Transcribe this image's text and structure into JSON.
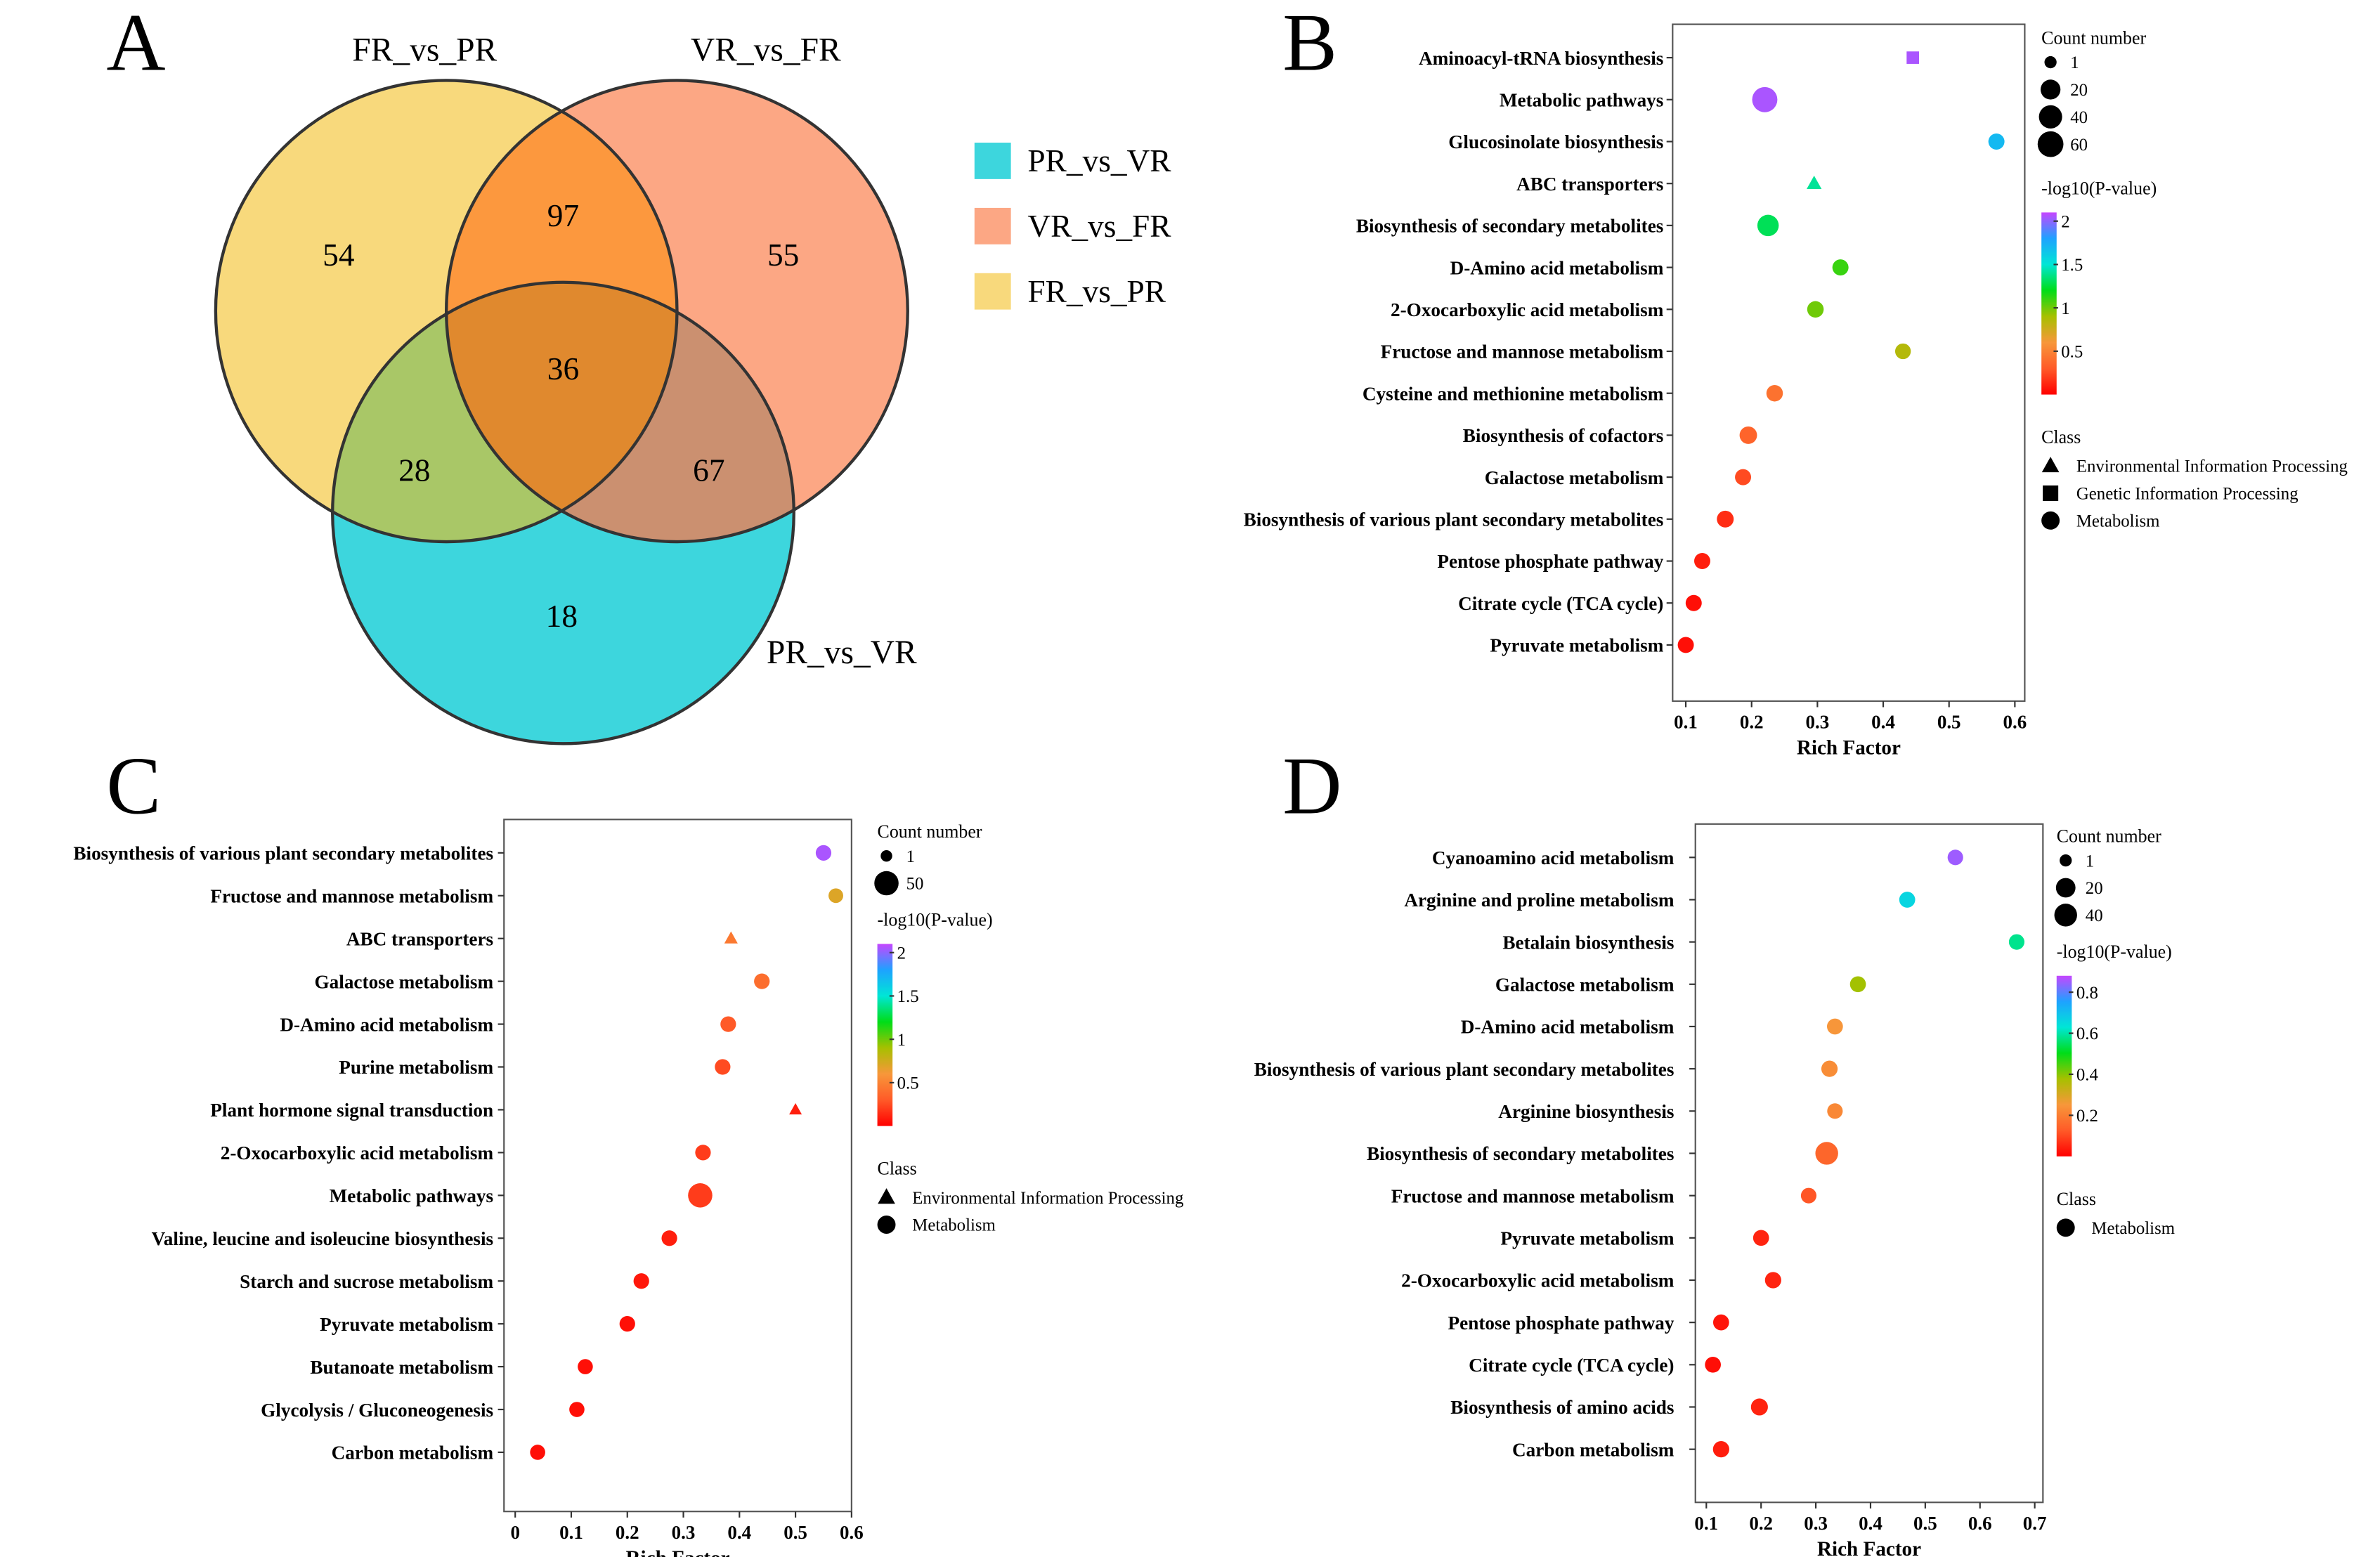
{
  "panels": {
    "A": "A",
    "B": "B",
    "C": "C",
    "D": "D"
  },
  "colormap": [
    "#ff0000",
    "#ff5a28",
    "#f7973a",
    "#a7c000",
    "#00dd18",
    "#00e6d6",
    "#1ea2ff",
    "#c646ff"
  ],
  "chart_data": [
    {
      "type": "venn",
      "panel": "A",
      "sets": [
        {
          "name": "FR_vs_PR",
          "color": "#f8d97c"
        },
        {
          "name": "VR_vs_FR",
          "color": "#fca784"
        },
        {
          "name": "PR_vs_VR",
          "color": "#3dd6dd"
        }
      ],
      "legend": [
        "PR_vs_VR",
        "VR_vs_FR",
        "FR_vs_PR"
      ],
      "legend_colors": [
        "#3dd6dd",
        "#fca784",
        "#f8d97c"
      ],
      "regions": {
        "FR_only": "54",
        "VR_only": "55",
        "PR_only": "18",
        "FR_VR": "97",
        "FR_PR": "28",
        "VR_PR": "67",
        "all": "36"
      }
    },
    {
      "type": "scatter",
      "panel": "B",
      "xlabel": "Rich Factor",
      "xlim": [
        0.08,
        0.615
      ],
      "xticks": [
        "0.1",
        "0.2",
        "0.3",
        "0.4",
        "0.5",
        "0.6"
      ],
      "color_title": "-log10(P-value)",
      "color_range": [
        0,
        2.1
      ],
      "color_ticks": [
        "0.5",
        "1",
        "1.5",
        "2"
      ],
      "size_title": "Count number",
      "size_legend": [
        "1",
        "20",
        "40",
        "60"
      ],
      "size_range": [
        1,
        60
      ],
      "class_title": "Class",
      "classes": [
        "Environmental Information Processing",
        "Genetic Information Processing",
        "Metabolism"
      ],
      "points": [
        {
          "term": "Aminoacyl-tRNA biosynthesis",
          "x": 0.445,
          "p": 2.05,
          "count": 3,
          "class": "Genetic Information Processing"
        },
        {
          "term": "Metabolic pathways",
          "x": 0.22,
          "p": 2.05,
          "count": 55,
          "class": "Metabolism"
        },
        {
          "term": "Glucosinolate biosynthesis",
          "x": 0.572,
          "p": 1.7,
          "count": 6,
          "class": "Metabolism"
        },
        {
          "term": "ABC transporters",
          "x": 0.295,
          "p": 1.4,
          "count": 5,
          "class": "Environmental Information Processing"
        },
        {
          "term": "Biosynthesis of secondary metabolites",
          "x": 0.225,
          "p": 1.3,
          "count": 28,
          "class": "Metabolism"
        },
        {
          "term": "D-Amino acid metabolism",
          "x": 0.335,
          "p": 1.1,
          "count": 6,
          "class": "Metabolism"
        },
        {
          "term": "2-Oxocarboxylic acid metabolism",
          "x": 0.297,
          "p": 1.0,
          "count": 7,
          "class": "Metabolism"
        },
        {
          "term": "Fructose and mannose metabolism",
          "x": 0.43,
          "p": 0.85,
          "count": 5,
          "class": "Metabolism"
        },
        {
          "term": "Cysteine and methionine metabolism",
          "x": 0.235,
          "p": 0.42,
          "count": 7,
          "class": "Metabolism"
        },
        {
          "term": "Biosynthesis of cofactors",
          "x": 0.195,
          "p": 0.35,
          "count": 10,
          "class": "Metabolism"
        },
        {
          "term": "Galactose metabolism",
          "x": 0.187,
          "p": 0.25,
          "count": 6,
          "class": "Metabolism"
        },
        {
          "term": "Biosynthesis of various plant secondary metabolites",
          "x": 0.16,
          "p": 0.15,
          "count": 8,
          "class": "Metabolism"
        },
        {
          "term": "Pentose phosphate pathway",
          "x": 0.125,
          "p": 0.1,
          "count": 6,
          "class": "Metabolism"
        },
        {
          "term": "Citrate cycle (TCA cycle)",
          "x": 0.112,
          "p": 0.05,
          "count": 6,
          "class": "Metabolism"
        },
        {
          "term": "Pyruvate metabolism",
          "x": 0.1,
          "p": 0.05,
          "count": 6,
          "class": "Metabolism"
        }
      ]
    },
    {
      "type": "scatter",
      "panel": "C",
      "xlabel": "Rich Factor",
      "xlim": [
        -0.02,
        0.6
      ],
      "xticks": [
        "0",
        "0.1",
        "0.2",
        "0.3",
        "0.4",
        "0.5",
        "0.6"
      ],
      "color_title": "-log10(P-value)",
      "color_range": [
        0,
        2.1
      ],
      "color_ticks": [
        "0.5",
        "1",
        "1.5",
        "2"
      ],
      "size_title": "Count number",
      "size_legend": [
        "1",
        "50"
      ],
      "size_range": [
        1,
        50
      ],
      "class_title": "Class",
      "classes": [
        "Environmental Information Processing",
        "Metabolism"
      ],
      "points": [
        {
          "term": "Biosynthesis of various plant secondary metabolites",
          "x": 0.55,
          "p": 2.05,
          "count": 6,
          "class": "Metabolism"
        },
        {
          "term": "Fructose and mannose metabolism",
          "x": 0.572,
          "p": 0.7,
          "count": 4,
          "class": "Metabolism"
        },
        {
          "term": "ABC transporters",
          "x": 0.385,
          "p": 0.45,
          "count": 3,
          "class": "Environmental Information Processing"
        },
        {
          "term": "Galactose metabolism",
          "x": 0.44,
          "p": 0.4,
          "count": 6,
          "class": "Metabolism"
        },
        {
          "term": "D-Amino acid metabolism",
          "x": 0.38,
          "p": 0.3,
          "count": 6,
          "class": "Metabolism"
        },
        {
          "term": "Purine metabolism",
          "x": 0.37,
          "p": 0.25,
          "count": 6,
          "class": "Metabolism"
        },
        {
          "term": "Plant hormone signal transduction",
          "x": 0.5,
          "p": 0.1,
          "count": 2,
          "class": "Environmental Information Processing"
        },
        {
          "term": "2-Oxocarboxylic acid metabolism",
          "x": 0.335,
          "p": 0.2,
          "count": 6,
          "class": "Metabolism"
        },
        {
          "term": "Metabolic pathways",
          "x": 0.33,
          "p": 0.2,
          "count": 50,
          "class": "Metabolism"
        },
        {
          "term": "Valine, leucine and isoleucine biosynthesis",
          "x": 0.275,
          "p": 0.1,
          "count": 6,
          "class": "Metabolism"
        },
        {
          "term": "Starch and sucrose metabolism",
          "x": 0.225,
          "p": 0.08,
          "count": 6,
          "class": "Metabolism"
        },
        {
          "term": "Pyruvate metabolism",
          "x": 0.2,
          "p": 0.05,
          "count": 6,
          "class": "Metabolism"
        },
        {
          "term": "Butanoate metabolism",
          "x": 0.125,
          "p": 0.05,
          "count": 5,
          "class": "Metabolism"
        },
        {
          "term": "Glycolysis / Gluconeogenesis",
          "x": 0.11,
          "p": 0.05,
          "count": 5,
          "class": "Metabolism"
        },
        {
          "term": "Carbon metabolism",
          "x": 0.04,
          "p": 0.05,
          "count": 5,
          "class": "Metabolism"
        }
      ]
    },
    {
      "type": "scatter",
      "panel": "D",
      "xlabel": "Rich Factor",
      "xlim": [
        0.08,
        0.715
      ],
      "xticks": [
        "0.1",
        "0.2",
        "0.3",
        "0.4",
        "0.5",
        "0.6",
        "0.7"
      ],
      "color_title": "-log10(P-value)",
      "color_range": [
        0,
        0.88
      ],
      "color_ticks": [
        "0.2",
        "0.4",
        "0.6",
        "0.8"
      ],
      "size_title": "Count number",
      "size_legend": [
        "1",
        "20",
        "40"
      ],
      "size_range": [
        1,
        40
      ],
      "class_title": "Class",
      "classes": [
        "Metabolism"
      ],
      "points": [
        {
          "term": "Cyanoamino acid metabolism",
          "x": 0.555,
          "p": 0.85,
          "count": 5,
          "class": "Metabolism"
        },
        {
          "term": "Arginine and proline metabolism",
          "x": 0.467,
          "p": 0.66,
          "count": 6,
          "class": "Metabolism"
        },
        {
          "term": "Betalain biosynthesis",
          "x": 0.667,
          "p": 0.58,
          "count": 5,
          "class": "Metabolism"
        },
        {
          "term": "Galactose metabolism",
          "x": 0.377,
          "p": 0.38,
          "count": 6,
          "class": "Metabolism"
        },
        {
          "term": "D-Amino acid metabolism",
          "x": 0.335,
          "p": 0.25,
          "count": 6,
          "class": "Metabolism"
        },
        {
          "term": "Biosynthesis of various plant secondary metabolites",
          "x": 0.325,
          "p": 0.23,
          "count": 7,
          "class": "Metabolism"
        },
        {
          "term": "Arginine biosynthesis",
          "x": 0.335,
          "p": 0.22,
          "count": 5,
          "class": "Metabolism"
        },
        {
          "term": "Biosynthesis of secondary metabolites",
          "x": 0.32,
          "p": 0.15,
          "count": 40,
          "class": "Metabolism"
        },
        {
          "term": "Fructose and mannose metabolism",
          "x": 0.287,
          "p": 0.12,
          "count": 5,
          "class": "Metabolism"
        },
        {
          "term": "Pyruvate metabolism",
          "x": 0.2,
          "p": 0.05,
          "count": 6,
          "class": "Metabolism"
        },
        {
          "term": "2-Oxocarboxylic acid metabolism",
          "x": 0.222,
          "p": 0.05,
          "count": 7,
          "class": "Metabolism"
        },
        {
          "term": "Pentose phosphate pathway",
          "x": 0.127,
          "p": 0.03,
          "count": 6,
          "class": "Metabolism"
        },
        {
          "term": "Citrate cycle (TCA cycle)",
          "x": 0.112,
          "p": 0.02,
          "count": 6,
          "class": "Metabolism"
        },
        {
          "term": "Biosynthesis of amino acids",
          "x": 0.197,
          "p": 0.05,
          "count": 9,
          "class": "Metabolism"
        },
        {
          "term": "Carbon metabolism",
          "x": 0.127,
          "p": 0.04,
          "count": 7,
          "class": "Metabolism"
        }
      ]
    }
  ]
}
